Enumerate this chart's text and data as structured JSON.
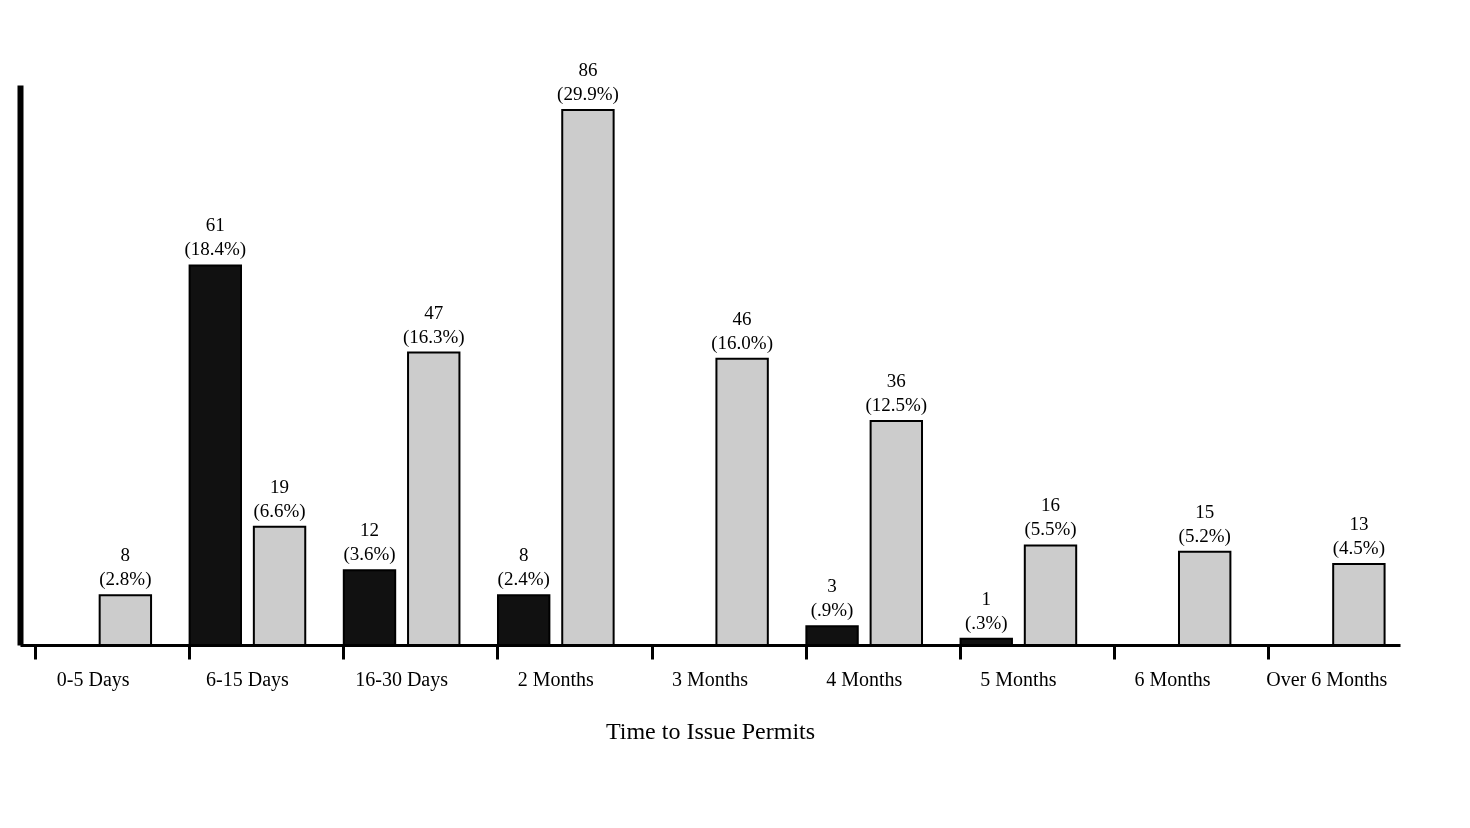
{
  "chart_data": {
    "type": "bar",
    "xlabel": "Time to Issue Permits",
    "categories": [
      "0-5\nDays",
      "6-15\nDays",
      "16-30\nDays",
      "2\nMonths",
      "3\nMonths",
      "4\nMonths",
      "5\nMonths",
      "6\nMonths",
      "Over 6\nMonths"
    ],
    "series": [
      {
        "color": "#111111",
        "values": [
          null,
          61,
          12,
          8,
          null,
          3,
          1,
          null,
          null
        ],
        "value_labels": [
          null,
          "61\n(18.4%)",
          "12\n(3.6%)",
          "8\n(2.4%)",
          null,
          "3\n(.9%)",
          "1\n(.3%)",
          null,
          null
        ]
      },
      {
        "color": "#cccccc",
        "values": [
          8,
          19,
          47,
          86,
          46,
          36,
          16,
          15,
          13
        ],
        "value_labels": [
          "8\n(2.8%)",
          "19\n(6.6%)",
          "47\n(16.3%)",
          "86\n(29.9%)",
          "46\n(16.0%)",
          "36\n(12.5%)",
          "16\n(5.5%)",
          "15\n(5.2%)",
          "13\n(4.5%)"
        ]
      }
    ],
    "tick_labels": "x"
  }
}
